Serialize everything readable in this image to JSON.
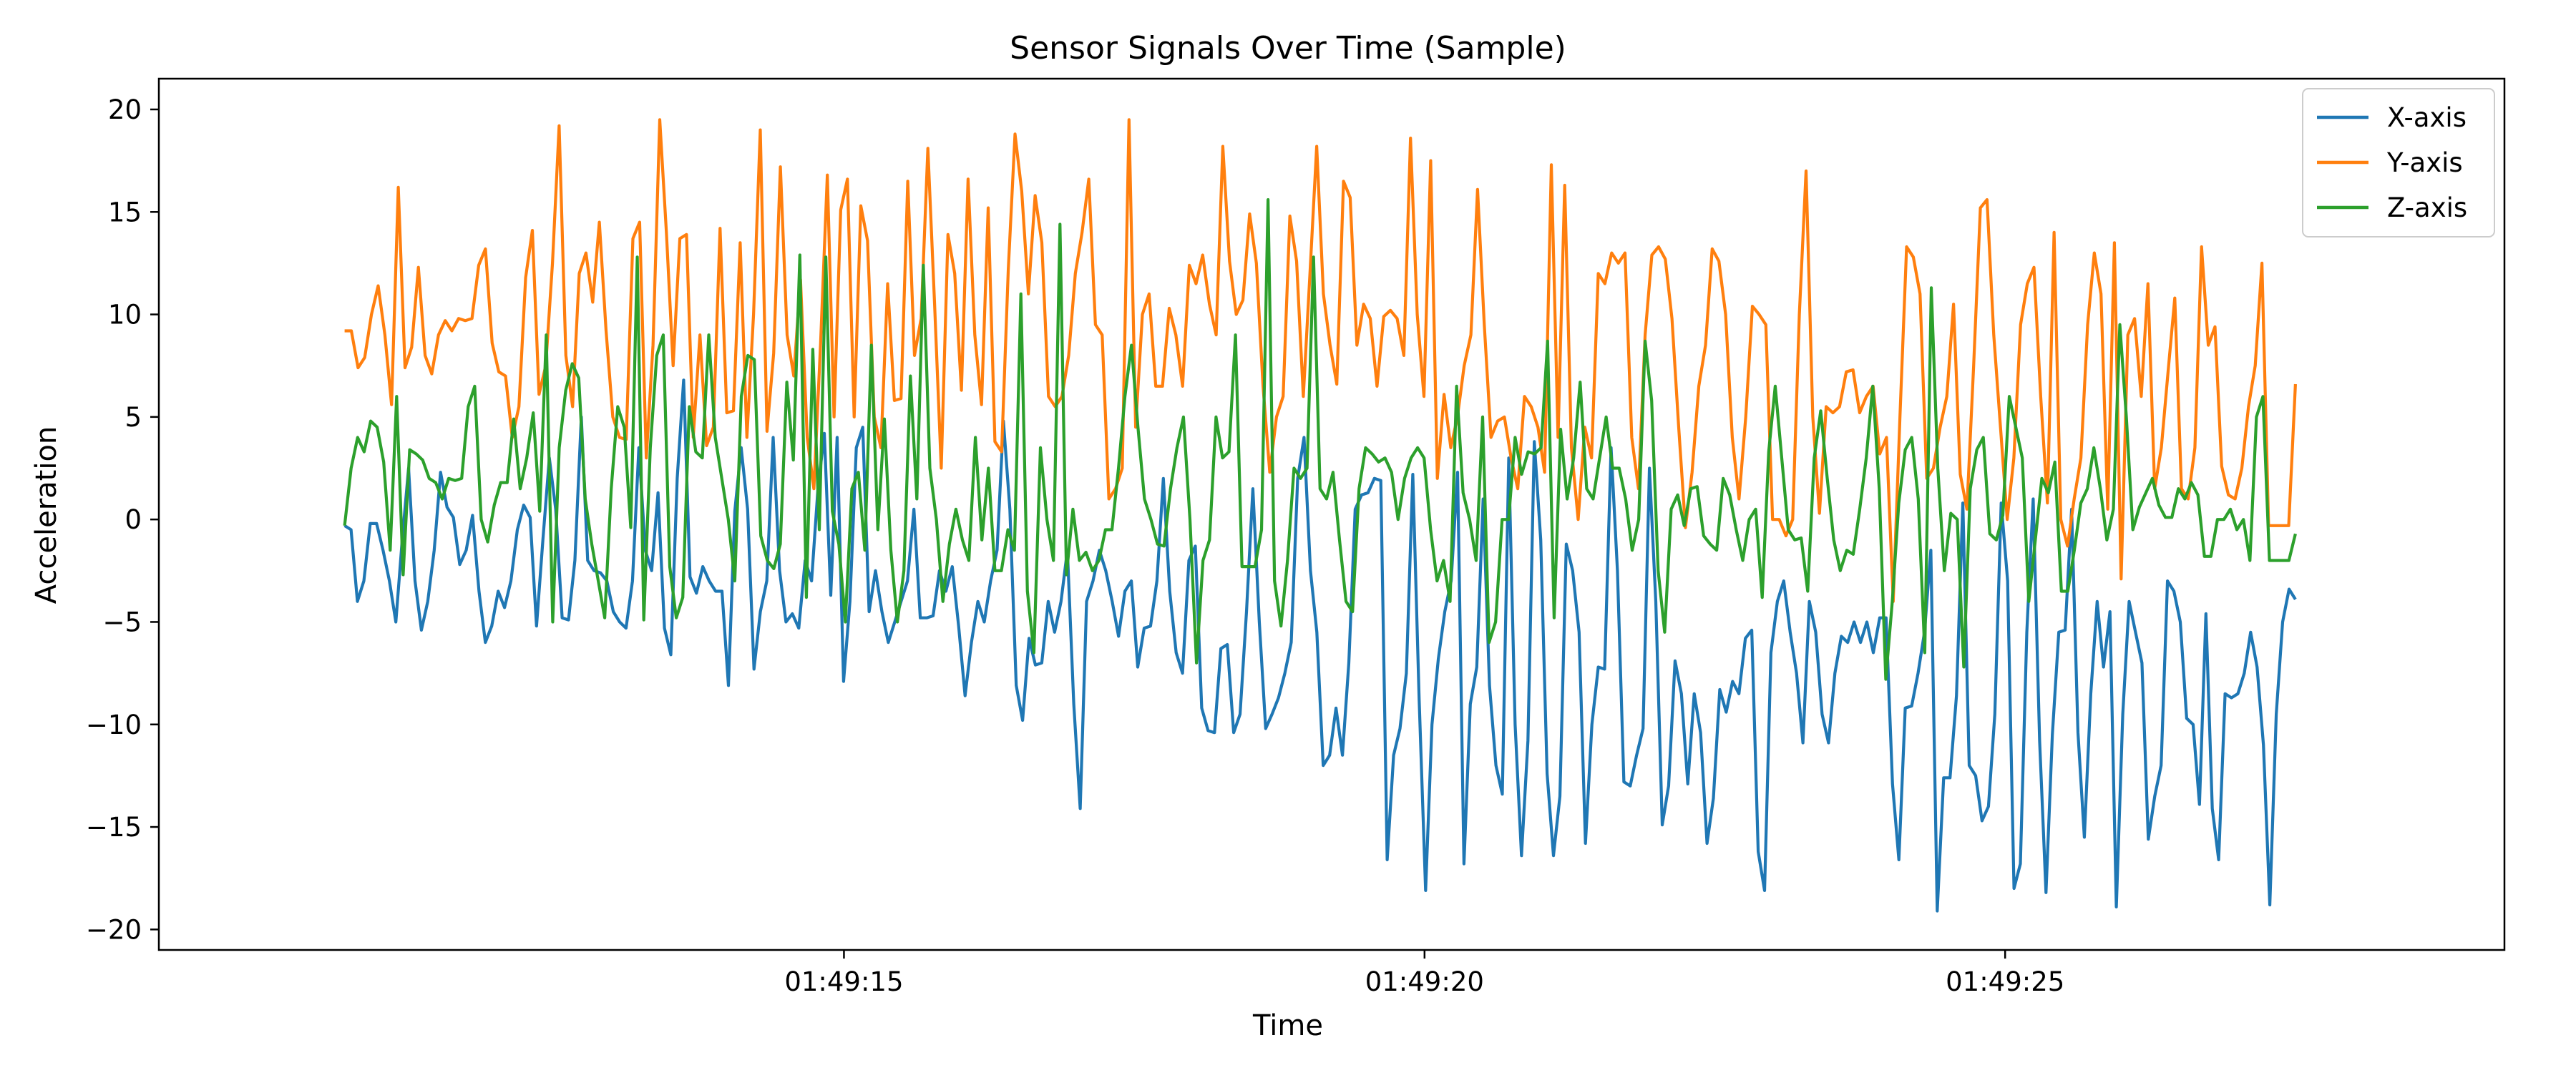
{
  "chart_data": {
    "type": "line",
    "title": "Sensor Signals Over Time (Sample)",
    "xlabel": "Time",
    "ylabel": "Acceleration",
    "x_axis": {
      "kind": "time",
      "start": "01:49:10.700",
      "end": "01:49:27.500",
      "ticks": [
        "01:49:15",
        "01:49:20",
        "01:49:25"
      ]
    },
    "y_axis": {
      "ticks": [
        20,
        15,
        10,
        5,
        0,
        -5,
        -10,
        -15,
        -20
      ]
    },
    "xlim": [
      "01:49:09.100",
      "01:49:29.300"
    ],
    "ylim": [
      -21,
      21.5
    ],
    "grid": false,
    "legend_position": "top-right",
    "colors": {
      "x_axis": "#1f77b4",
      "y_axis": "#ff7f0e",
      "z_axis": "#2ca02c"
    },
    "series": [
      {
        "name": "X-axis",
        "color": "#1f77b4",
        "values": [
          -0.3,
          -0.5,
          -4.0,
          -3.0,
          -0.2,
          -0.2,
          -1.5,
          -3.0,
          -5.0,
          -1.0,
          2.5,
          -3.0,
          -5.4,
          -4.0,
          -1.5,
          2.3,
          0.6,
          0.1,
          -2.2,
          -1.5,
          0.2,
          -3.5,
          -6.0,
          -5.2,
          -3.5,
          -4.3,
          -3.0,
          -0.5,
          0.7,
          0.1,
          -5.2,
          -1.0,
          3.0,
          0.5,
          -4.8,
          -4.9,
          -2.0,
          5.0,
          -2.0,
          -2.5,
          -2.6,
          -3.0,
          -4.5,
          -5.0,
          -5.3,
          -3.0,
          3.5,
          -1.5,
          -2.5,
          1.3,
          -5.3,
          -6.6,
          2.0,
          6.8,
          -2.8,
          -3.6,
          -2.3,
          -3.0,
          -3.5,
          -3.5,
          -8.1,
          0.4,
          3.5,
          0.5,
          -7.3,
          -4.5,
          -3.0,
          4.0,
          -2.5,
          -5.0,
          -4.6,
          -5.3,
          -2.0,
          -3.0,
          1.5,
          4.2,
          -3.7,
          4.0,
          -7.9,
          -4.0,
          3.5,
          4.5,
          -4.5,
          -2.5,
          -4.5,
          -6.0,
          -5.0,
          -4.0,
          -3.0,
          0.5,
          -4.8,
          -4.8,
          -4.7,
          -2.5,
          -3.5,
          -2.3,
          -5.2,
          -8.6,
          -6.0,
          -4.0,
          -5.0,
          -3.0,
          -1.5,
          4.8,
          0.5,
          -8.1,
          -9.8,
          -5.8,
          -7.1,
          -7.0,
          -4.0,
          -5.5,
          -4.0,
          -1.5,
          -9.0,
          -14.1,
          -4.0,
          -3.0,
          -1.5,
          -2.5,
          -4.0,
          -5.7,
          -3.5,
          -3.0,
          -7.2,
          -5.3,
          -5.2,
          -3.0,
          2.0,
          -3.5,
          -6.5,
          -7.5,
          -2.0,
          -1.3,
          -9.2,
          -10.3,
          -10.4,
          -6.3,
          -6.1,
          -10.4,
          -9.5,
          -4.5,
          1.5,
          -5.0,
          -10.2,
          -9.5,
          -8.7,
          -7.5,
          -6.0,
          2.0,
          4.0,
          -2.5,
          -5.5,
          -12.0,
          -11.5,
          -9.2,
          -11.5,
          -7.0,
          0.5,
          1.2,
          1.3,
          2.0,
          1.9,
          -16.6,
          -11.5,
          -10.2,
          -7.5,
          2.2,
          -8.8,
          -18.1,
          -10.0,
          -6.8,
          -4.5,
          -3.0,
          2.3,
          -16.8,
          -9.0,
          -7.2,
          1.0,
          -8.1,
          -12.0,
          -13.4,
          3.0,
          -10.0,
          -16.4,
          -10.8,
          3.8,
          -1.0,
          -12.4,
          -16.4,
          -13.5,
          -1.2,
          -2.5,
          -5.5,
          -15.8,
          -10.0,
          -7.2,
          -7.3,
          3.5,
          -2.5,
          -12.8,
          -13.0,
          -11.5,
          -10.2,
          2.5,
          -4.0,
          -14.9,
          -13.0,
          -6.9,
          -8.5,
          -12.9,
          -8.5,
          -10.4,
          -15.8,
          -13.6,
          -8.3,
          -9.4,
          -7.9,
          -8.5,
          -5.8,
          -5.4,
          -16.2,
          -18.1,
          -6.5,
          -4.0,
          -3.0,
          -5.5,
          -7.5,
          -10.9,
          -4.0,
          -5.5,
          -9.5,
          -10.9,
          -7.5,
          -5.7,
          -6.0,
          -5.0,
          -6.0,
          -5.0,
          -6.5,
          -4.8,
          -4.8,
          -12.9,
          -16.6,
          -9.2,
          -9.1,
          -7.5,
          -5.5,
          -1.5,
          -19.1,
          -12.6,
          -12.6,
          -8.6,
          0.8,
          -12.0,
          -12.5,
          -14.7,
          -14.0,
          -9.5,
          0.8,
          -3.0,
          -18.0,
          -16.8,
          -5.5,
          1.0,
          -10.8,
          -18.2,
          -10.5,
          -5.5,
          -5.4,
          0.5,
          -10.4,
          -15.5,
          -8.5,
          -4.0,
          -7.2,
          -4.5,
          -18.9,
          -9.5,
          -4.0,
          -5.5,
          -7.0,
          -15.6,
          -13.5,
          -12.0,
          -3.0,
          -3.5,
          -5.0,
          -9.7,
          -10.0,
          -13.9,
          -4.6,
          -14.1,
          -16.6,
          -8.5,
          -8.7,
          -8.5,
          -7.5,
          -5.5,
          -7.2,
          -11.0,
          -18.8,
          -9.5,
          -5.0,
          -3.4,
          -3.9
        ]
      },
      {
        "name": "Y-axis",
        "color": "#ff7f0e",
        "values": [
          9.2,
          9.2,
          7.4,
          7.9,
          10.0,
          11.4,
          9.0,
          5.6,
          16.2,
          7.4,
          8.4,
          12.3,
          8.0,
          7.1,
          9.0,
          9.7,
          9.2,
          9.8,
          9.7,
          9.8,
          12.4,
          13.2,
          8.6,
          7.2,
          7.0,
          4.0,
          5.5,
          11.8,
          14.1,
          6.1,
          7.5,
          12.5,
          19.2,
          8.0,
          5.5,
          12.0,
          13.0,
          10.6,
          14.5,
          9.2,
          5.0,
          4.0,
          3.9,
          13.7,
          14.5,
          3.0,
          8.5,
          19.5,
          14.0,
          7.5,
          13.7,
          13.9,
          4.0,
          9.0,
          3.6,
          4.5,
          14.2,
          5.2,
          5.3,
          13.5,
          4.0,
          10.0,
          19.0,
          4.3,
          8.1,
          17.2,
          9.0,
          7.0,
          11.7,
          4.0,
          1.5,
          8.6,
          16.8,
          5.0,
          15.1,
          16.6,
          5.0,
          15.3,
          13.6,
          5.0,
          3.5,
          11.5,
          5.8,
          5.9,
          16.5,
          8.0,
          9.8,
          18.1,
          10.5,
          2.5,
          13.9,
          12.0,
          6.3,
          16.6,
          9.0,
          5.6,
          15.2,
          3.8,
          3.3,
          12.2,
          18.8,
          16.0,
          11.0,
          15.8,
          13.5,
          6.0,
          5.5,
          6.0,
          8.0,
          12.0,
          14.0,
          16.6,
          9.5,
          9.0,
          1.0,
          1.5,
          2.5,
          19.5,
          4.5,
          10.0,
          11.0,
          6.5,
          6.5,
          10.3,
          9.0,
          6.5,
          12.4,
          11.5,
          12.9,
          10.5,
          9.0,
          18.2,
          12.6,
          10.0,
          10.7,
          14.9,
          12.5,
          6.5,
          2.3,
          5.0,
          6.0,
          14.8,
          12.6,
          6.0,
          12.0,
          18.2,
          11.0,
          8.5,
          6.6,
          16.5,
          15.7,
          8.5,
          10.5,
          9.8,
          6.5,
          9.9,
          10.2,
          9.8,
          8.0,
          18.6,
          10.0,
          6.0,
          17.5,
          2.0,
          6.1,
          3.5,
          5.0,
          7.5,
          9.0,
          16.1,
          9.5,
          4.0,
          4.8,
          5.0,
          3.0,
          1.5,
          6.0,
          5.5,
          4.5,
          2.3,
          17.3,
          4.0,
          16.3,
          3.5,
          0.0,
          4.5,
          3.0,
          12.0,
          11.5,
          13.0,
          12.5,
          13.0,
          4.0,
          1.5,
          9.0,
          12.9,
          13.3,
          12.7,
          9.8,
          4.5,
          -0.4,
          2.3,
          6.5,
          8.5,
          13.2,
          12.6,
          10.0,
          4.0,
          1.0,
          5.0,
          10.4,
          10.0,
          9.5,
          0.0,
          0.0,
          -0.8,
          0.0,
          10.0,
          17.0,
          5.0,
          0.3,
          5.5,
          5.2,
          5.5,
          7.2,
          7.3,
          5.2,
          6.0,
          6.5,
          3.2,
          4.0,
          -4.0,
          5.0,
          13.3,
          12.8,
          11.0,
          2.0,
          2.5,
          4.5,
          6.0,
          10.5,
          2.2,
          0.5,
          7.5,
          15.2,
          15.6,
          9.0,
          4.5,
          0.0,
          3.0,
          9.5,
          11.5,
          12.3,
          6.0,
          0.8,
          14.0,
          0.0,
          -1.3,
          1.0,
          3.0,
          9.5,
          13.0,
          11.0,
          0.5,
          13.5,
          -2.9,
          9.0,
          9.8,
          6.0,
          11.5,
          1.5,
          3.5,
          7.2,
          10.8,
          1.5,
          1.0,
          3.5,
          13.3,
          8.5,
          9.4,
          2.6,
          1.2,
          1.0,
          2.5,
          5.5,
          7.5,
          12.5,
          -0.3,
          -0.3,
          -0.3,
          -0.3,
          6.6
        ]
      },
      {
        "name": "Z-axis",
        "color": "#2ca02c",
        "values": [
          -0.3,
          2.5,
          4.0,
          3.3,
          4.8,
          4.5,
          2.8,
          -1.5,
          6.0,
          -2.7,
          3.4,
          3.2,
          2.9,
          2.0,
          1.8,
          1.0,
          2.0,
          1.9,
          2.0,
          5.5,
          6.5,
          0.0,
          -1.1,
          0.7,
          1.8,
          1.8,
          4.9,
          1.5,
          3.0,
          5.2,
          0.4,
          9.0,
          -5.0,
          3.5,
          6.3,
          7.6,
          6.9,
          1.0,
          -1.2,
          -3.0,
          -4.8,
          1.5,
          5.5,
          4.5,
          -0.4,
          12.8,
          -4.9,
          3.5,
          8.0,
          9.0,
          -2.3,
          -4.8,
          -3.8,
          5.5,
          3.3,
          3.0,
          9.0,
          4.0,
          2.0,
          0.0,
          -3.0,
          6.0,
          8.0,
          7.8,
          -0.8,
          -2.0,
          -2.4,
          -1.2,
          6.7,
          2.9,
          12.9,
          -3.8,
          8.3,
          -0.5,
          12.8,
          0.4,
          -1.2,
          -5.0,
          1.5,
          2.3,
          -1.5,
          8.5,
          -0.5,
          4.9,
          -1.5,
          -5.0,
          -2.5,
          7.0,
          1.0,
          12.4,
          2.5,
          0.0,
          -4.0,
          -1.2,
          0.5,
          -1.0,
          -2.0,
          4.0,
          -1.0,
          2.5,
          -2.5,
          -2.5,
          -0.5,
          -1.5,
          11.0,
          -3.5,
          -6.5,
          3.5,
          0.0,
          -2.0,
          14.4,
          -2.7,
          0.5,
          -2.0,
          -1.6,
          -2.5,
          -2.0,
          -0.5,
          -0.5,
          2.5,
          6.0,
          8.5,
          4.5,
          1.0,
          0.0,
          -1.2,
          -1.3,
          1.5,
          3.5,
          5.0,
          0.0,
          -7.0,
          -2.0,
          -1.0,
          5.0,
          3.0,
          3.3,
          9.0,
          -2.3,
          -2.3,
          -2.3,
          -0.5,
          15.6,
          -3.0,
          -5.2,
          -2.0,
          2.5,
          2.0,
          2.5,
          12.8,
          1.5,
          1.0,
          2.3,
          -1.0,
          -4.0,
          -4.5,
          1.5,
          3.5,
          3.2,
          2.8,
          3.0,
          2.3,
          0.0,
          2.0,
          3.0,
          3.5,
          3.0,
          -0.5,
          -3.0,
          -2.0,
          -4.0,
          6.5,
          1.3,
          0.0,
          -2.0,
          5.0,
          -6.0,
          -5.0,
          0.0,
          0.0,
          4.0,
          2.2,
          3.3,
          3.2,
          3.5,
          8.7,
          -4.8,
          4.4,
          1.0,
          3.0,
          6.7,
          1.5,
          1.0,
          3.0,
          5.0,
          2.5,
          2.5,
          1.0,
          -1.5,
          0.0,
          8.7,
          5.8,
          -2.5,
          -5.5,
          0.5,
          1.2,
          -0.3,
          1.5,
          1.6,
          -0.8,
          -1.2,
          -1.5,
          2.0,
          1.2,
          -0.5,
          -2.0,
          0.0,
          0.5,
          -3.8,
          3.3,
          6.5,
          3.0,
          -0.5,
          -1.0,
          -0.9,
          -3.5,
          3.0,
          5.3,
          2.0,
          -1.0,
          -2.5,
          -1.5,
          -1.7,
          0.5,
          3.0,
          6.5,
          1.5,
          -7.8,
          -4.0,
          0.8,
          3.4,
          4.0,
          1.0,
          -6.5,
          11.3,
          2.5,
          -2.5,
          0.3,
          0.0,
          -7.2,
          1.5,
          3.4,
          4.0,
          -0.7,
          -1.0,
          0.2,
          6.0,
          4.5,
          3.0,
          -4.0,
          -1.0,
          2.0,
          1.3,
          2.8,
          -3.5,
          -3.5,
          -1.5,
          0.8,
          1.5,
          3.5,
          1.5,
          -1.0,
          0.5,
          9.5,
          5.0,
          -0.5,
          0.6,
          1.3,
          2.0,
          0.7,
          0.1,
          0.1,
          1.5,
          1.0,
          1.8,
          1.2,
          -1.8,
          -1.8,
          0.0,
          0.0,
          0.5,
          -0.5,
          0.0,
          -2.0,
          5.0,
          6.0,
          -2.0,
          -2.0,
          -2.0,
          -2.0,
          -0.7
        ]
      }
    ]
  }
}
